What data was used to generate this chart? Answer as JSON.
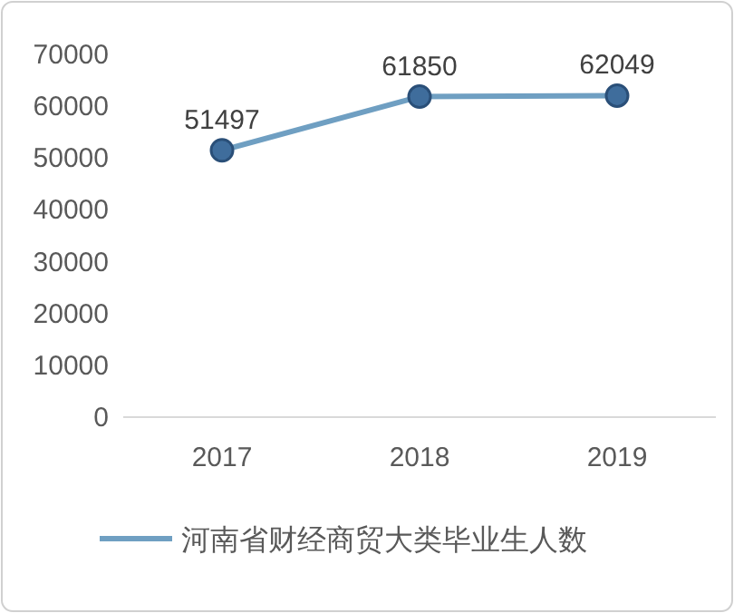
{
  "chart_data": {
    "type": "line",
    "categories": [
      "2017",
      "2018",
      "2019"
    ],
    "series": [
      {
        "name": "河南省财经商贸大类毕业生人数",
        "color": "#6f9fc2",
        "values": [
          51497,
          61850,
          62049
        ]
      }
    ],
    "ylim": [
      0,
      70000
    ],
    "yticks": [
      0,
      10000,
      20000,
      30000,
      40000,
      50000,
      60000,
      70000
    ],
    "data_labels": true,
    "legend": "bottom",
    "marker": "circle",
    "line_style": "solid",
    "grid": false
  }
}
